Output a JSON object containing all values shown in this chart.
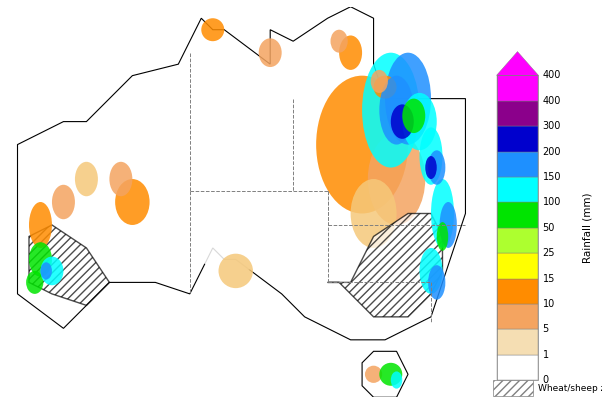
{
  "title": "",
  "colorbar_label": "Rainfall (mm)",
  "levels": [
    0,
    1,
    5,
    10,
    15,
    25,
    50,
    100,
    150,
    200,
    300,
    400
  ],
  "colors": [
    "#ffffff",
    "#f5deb3",
    "#f4a460",
    "#ff8c00",
    "#ffff00",
    "#adff2f",
    "#00ff00",
    "#00ffff",
    "#00bfff",
    "#0000ff",
    "#8b00ff",
    "#ff00ff"
  ],
  "tick_labels": [
    "0",
    "1",
    "5",
    "10",
    "15",
    "25",
    "50",
    "100",
    "150",
    "200",
    "300",
    "400"
  ],
  "colorbar_colors": [
    "#ffffff",
    "#f5deb3",
    "#f4a460",
    "#ff8c00",
    "#ffff00",
    "#adff2f",
    "#00ff00",
    "#00ffff",
    "#1e90ff",
    "#0000cd",
    "#8b008b",
    "#ff00ff"
  ],
  "background_color": "#ffffff",
  "map_bg": "#ffffff",
  "wheat_sheep_hatch": "////",
  "legend_wheat_label": "Wheat/sheep zone",
  "colorbar_arrow_color": "#ff00ff",
  "fig_width": 6.02,
  "fig_height": 4.04,
  "dpi": 100
}
